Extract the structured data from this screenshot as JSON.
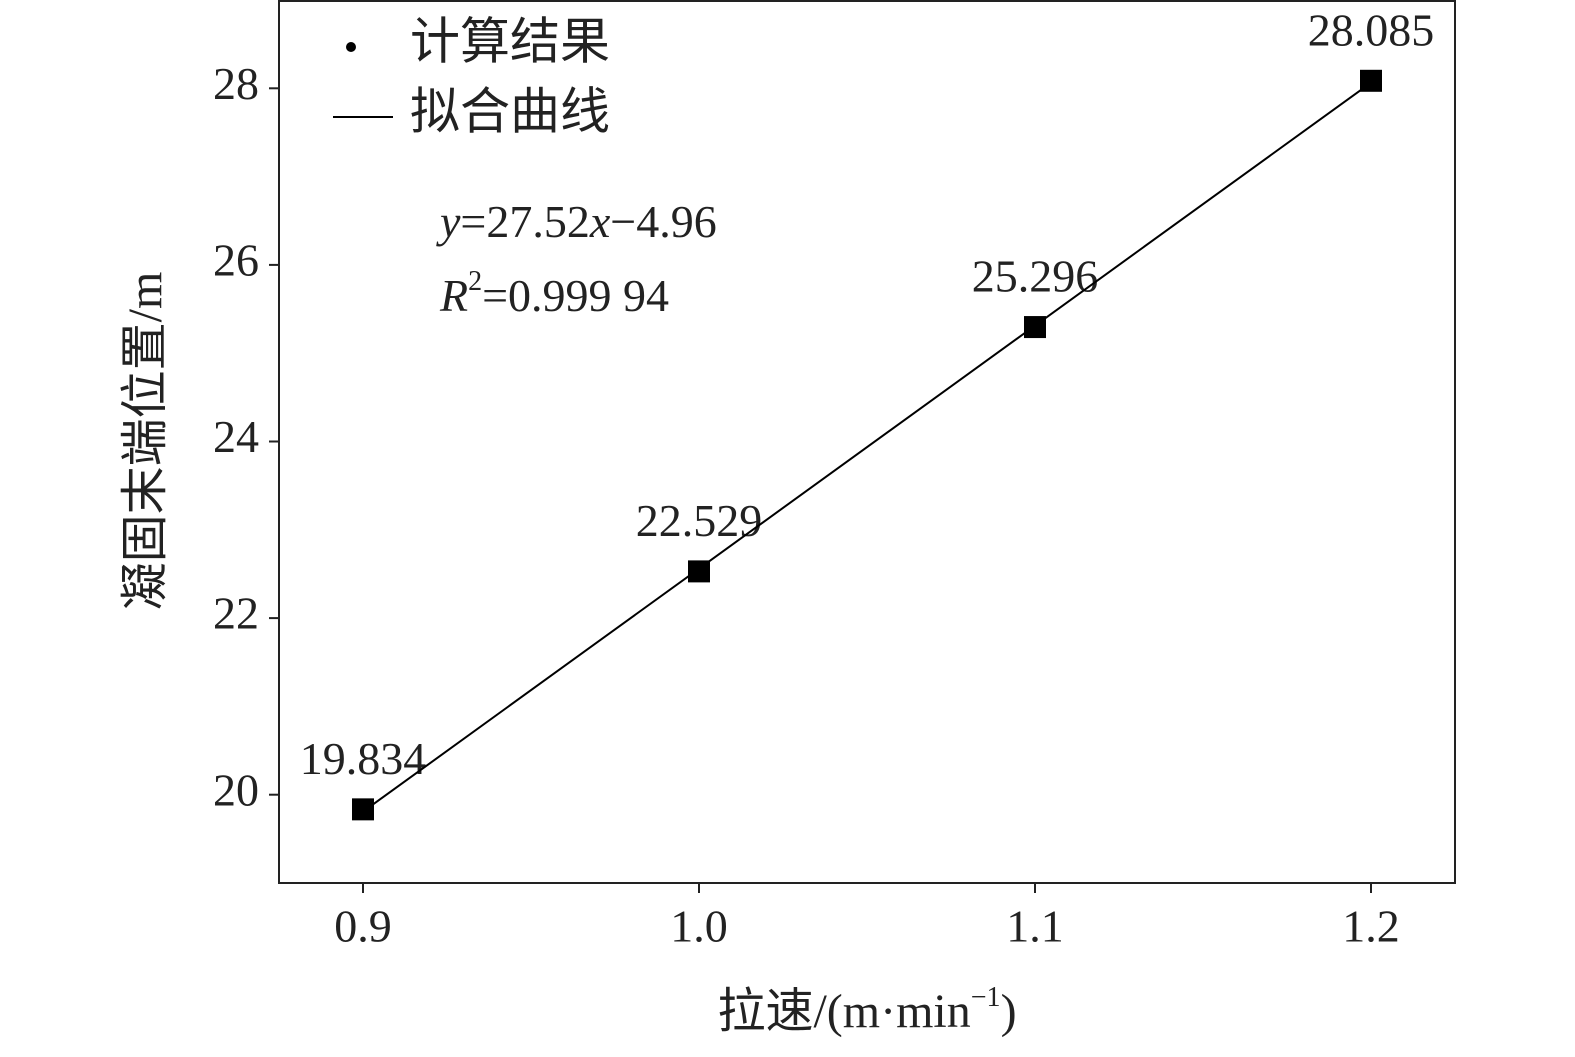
{
  "chart_data": {
    "type": "scatter",
    "x_label": [
      "拉速/(m·min",
      "−1",
      ")"
    ],
    "y_label": "凝固末端位置/m",
    "x": [
      0.9,
      1.0,
      1.1,
      1.2
    ],
    "series": [
      {
        "name": "计算结果",
        "color": "#000000",
        "marker": "square",
        "values": [
          19.834,
          22.529,
          25.296,
          28.085
        ]
      },
      {
        "name": "拟合曲线",
        "color": "#000000",
        "type": "line",
        "values": [
          19.808,
          22.56,
          25.312,
          28.064
        ]
      }
    ],
    "equation": [
      "y",
      "=27.52",
      "x",
      "−4.96"
    ],
    "r_squared": [
      "R",
      "2",
      "=0.999 94"
    ],
    "xlim": [
      0.875,
      1.225
    ],
    "ylim": [
      19,
      29
    ],
    "xticks": [
      0.9,
      {
        "value": 1.0,
        "label": "1.0"
      },
      1.1,
      1.2
    ],
    "yticks": [
      20,
      22,
      24,
      26,
      28
    ],
    "legend": "upper left",
    "grid": false
  }
}
